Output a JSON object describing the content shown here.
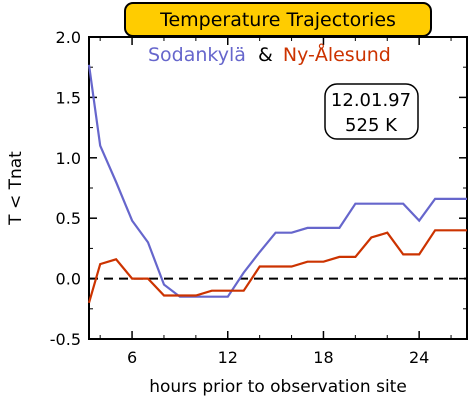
{
  "chart_data": {
    "type": "line",
    "title": "Temperature Trajectories",
    "xlabel": "hours prior to observation site",
    "ylabel": "T < Tnat",
    "xlim": [
      3.3,
      27
    ],
    "ylim": [
      -0.5,
      2.0
    ],
    "xticks": [
      6,
      12,
      18,
      24
    ],
    "yticks": [
      -0.5,
      0.0,
      0.5,
      1.0,
      1.5,
      2.0
    ],
    "ytick_labels": [
      "-0.5",
      "0.0",
      "0.5",
      "1.0",
      "1.5",
      "2.0"
    ],
    "legend_joiner": "&",
    "annotation": [
      "12.01.97",
      "525 K"
    ],
    "reference_line": {
      "y": 0.0,
      "style": "dashed"
    },
    "series": [
      {
        "name": "Sodankylä",
        "color": "#6666cc",
        "x": [
          3.3,
          4,
          5,
          6,
          7,
          8,
          9,
          10,
          11,
          12,
          13,
          14,
          15,
          16,
          17,
          18,
          19,
          20,
          21,
          22,
          23,
          24,
          25,
          26,
          27
        ],
        "y": [
          1.77,
          1.1,
          0.8,
          0.48,
          0.3,
          -0.05,
          -0.15,
          -0.15,
          -0.15,
          -0.15,
          0.05,
          0.22,
          0.38,
          0.38,
          0.42,
          0.42,
          0.42,
          0.62,
          0.62,
          0.62,
          0.62,
          0.48,
          0.66,
          0.66,
          0.66
        ]
      },
      {
        "name": "Ny-Ålesund",
        "color": "#cc3300",
        "x": [
          3.3,
          4,
          5,
          6,
          7,
          8,
          9,
          10,
          11,
          12,
          13,
          14,
          15,
          16,
          17,
          18,
          19,
          20,
          21,
          22,
          23,
          24,
          25,
          26,
          27
        ],
        "y": [
          -0.2,
          0.12,
          0.16,
          0.0,
          0.0,
          -0.14,
          -0.14,
          -0.14,
          -0.1,
          -0.1,
          -0.1,
          0.1,
          0.1,
          0.1,
          0.14,
          0.14,
          0.18,
          0.18,
          0.34,
          0.38,
          0.2,
          0.2,
          0.4,
          0.4,
          0.4
        ]
      }
    ]
  }
}
